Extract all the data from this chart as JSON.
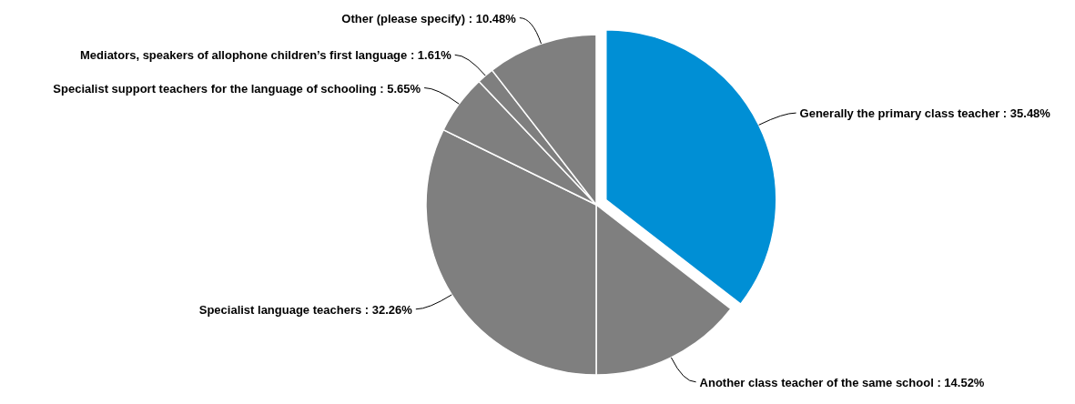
{
  "chart_data": {
    "type": "pie",
    "categories": [
      "Generally the primary class teacher",
      "Another class teacher of the same school",
      "Specialist language teachers",
      "Specialist support teachers for the language of schooling",
      "Mediators, speakers of allophone children’s first language",
      "Other (please specify)"
    ],
    "values": [
      35.48,
      14.52,
      32.26,
      5.65,
      1.61,
      10.48
    ],
    "colors": [
      "#008fd5",
      "#7f7f7f",
      "#7f7f7f",
      "#7f7f7f",
      "#7f7f7f",
      "#7f7f7f"
    ],
    "value_labels": [
      "35.48%",
      "14.52%",
      "32.26%",
      "5.65%",
      "1.61%",
      "10.48%"
    ]
  }
}
